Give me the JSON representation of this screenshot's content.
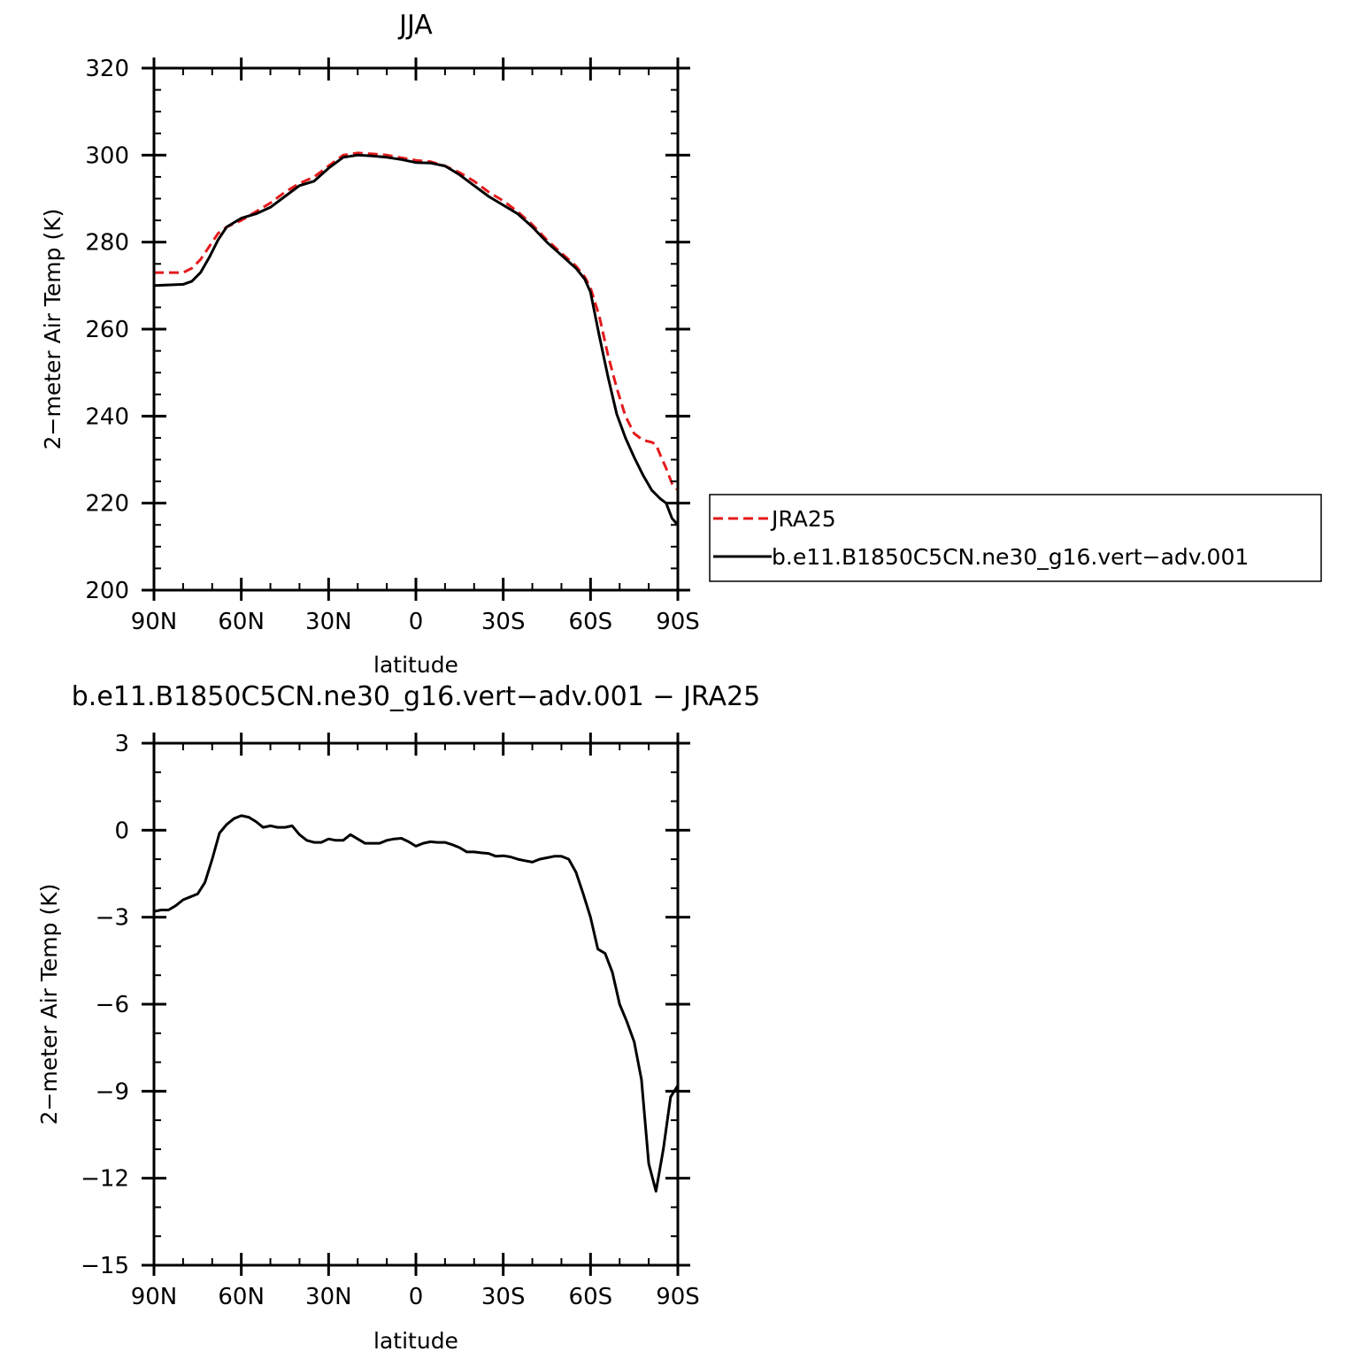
{
  "charts": [
    {
      "title": "JJA",
      "xlabel": "latitude",
      "ylabel": "2−meter Air Temp (K)",
      "xticks": [
        {
          "x": -90,
          "label": "90N"
        },
        {
          "x": -60,
          "label": "60N"
        },
        {
          "x": -30,
          "label": "30N"
        },
        {
          "x": 0,
          "label": "0"
        },
        {
          "x": 30,
          "label": "30S"
        },
        {
          "x": 60,
          "label": "60S"
        },
        {
          "x": 90,
          "label": "90S"
        }
      ],
      "yticks": [
        {
          "y": 200,
          "label": "200"
        },
        {
          "y": 220,
          "label": "220"
        },
        {
          "y": 240,
          "label": "240"
        },
        {
          "y": 260,
          "label": "260"
        },
        {
          "y": 280,
          "label": "280"
        },
        {
          "y": 300,
          "label": "300"
        },
        {
          "y": 320,
          "label": "320"
        }
      ],
      "legend": [
        {
          "label": "JRA25"
        },
        {
          "label": "b.e11.B1850C5CN.ne30_g16.vert−adv.001"
        }
      ]
    },
    {
      "title": "b.e11.B1850C5CN.ne30_g16.vert−adv.001  −  JRA25",
      "xlabel": "latitude",
      "ylabel": "2−meter Air Temp (K)",
      "xticks": [
        {
          "x": -90,
          "label": "90N"
        },
        {
          "x": -60,
          "label": "60N"
        },
        {
          "x": -30,
          "label": "30N"
        },
        {
          "x": 0,
          "label": "0"
        },
        {
          "x": 30,
          "label": "30S"
        },
        {
          "x": 60,
          "label": "60S"
        },
        {
          "x": 90,
          "label": "90S"
        }
      ],
      "yticks": [
        {
          "y": -15,
          "label": "−15"
        },
        {
          "y": -12,
          "label": "−12"
        },
        {
          "y": -9,
          "label": "−9"
        },
        {
          "y": -6,
          "label": "−6"
        },
        {
          "y": -3,
          "label": "−3"
        },
        {
          "y": 0,
          "label": "0"
        },
        {
          "y": 3,
          "label": "3"
        }
      ]
    }
  ],
  "chart_data": [
    {
      "type": "line",
      "title": "JJA",
      "xlabel": "latitude",
      "ylabel": "2−meter Air Temp (K)",
      "xlim": [
        -90,
        90
      ],
      "ylim": [
        200,
        320
      ],
      "x_note_direction": "latitude from 90N (left) to 90S (right); south positive",
      "grid": false,
      "legend_position": "right",
      "series": [
        {
          "name": "JRA25",
          "color": "#e41a1c",
          "dash": "dashed",
          "x": [
            -90,
            -80,
            -77,
            -74,
            -71,
            -68,
            -65,
            -60,
            -55,
            -50,
            -45,
            -40,
            -35,
            -30,
            -25,
            -20,
            -15,
            -10,
            -5,
            0,
            5,
            10,
            15,
            20,
            25,
            30,
            35,
            40,
            45,
            50,
            55,
            58,
            60,
            63,
            66,
            69,
            72,
            75,
            78,
            81,
            82.5,
            84,
            86,
            88,
            90
          ],
          "y": [
            273,
            273,
            274,
            276,
            279,
            282,
            283.5,
            285,
            287,
            289,
            291.5,
            293.5,
            295,
            297.5,
            300,
            300.5,
            300.3,
            300,
            299.4,
            298.8,
            298.5,
            297.5,
            296,
            294,
            291.5,
            289.5,
            287,
            284,
            280.5,
            277.5,
            274.5,
            272,
            269.5,
            263,
            254,
            246.5,
            240,
            236,
            234.5,
            234,
            233.5,
            231,
            228,
            224.5,
            223
          ]
        },
        {
          "name": "b.e11.B1850C5CN.ne30_g16.vert−adv.001",
          "color": "#000000",
          "dash": "solid",
          "x": [
            -90,
            -80,
            -77,
            -74,
            -71,
            -68,
            -65,
            -60,
            -55,
            -50,
            -45,
            -40,
            -35,
            -30,
            -25,
            -20,
            -15,
            -10,
            -5,
            0,
            5,
            10,
            15,
            20,
            25,
            30,
            35,
            40,
            45,
            50,
            55,
            58,
            60,
            63,
            66,
            69,
            72,
            75,
            78,
            81,
            82.5,
            84,
            86,
            88,
            90
          ],
          "y": [
            270,
            270.3,
            271,
            273,
            276.5,
            280.5,
            283.5,
            285.5,
            286.5,
            288,
            290.5,
            293,
            294,
            297,
            299.5,
            300,
            299.8,
            299.5,
            299,
            298.3,
            298.2,
            297.5,
            295.5,
            293,
            290.5,
            288.5,
            286.5,
            283.5,
            280,
            277,
            274,
            271.5,
            268.5,
            258.5,
            249,
            240.5,
            235,
            230.5,
            226.5,
            223,
            222,
            221,
            220,
            216.5,
            215
          ]
        }
      ]
    },
    {
      "type": "line",
      "title": "b.e11.B1850C5CN.ne30_g16.vert−adv.001  −  JRA25",
      "xlabel": "latitude",
      "ylabel": "2−meter Air Temp (K)",
      "xlim": [
        -90,
        90
      ],
      "ylim": [
        -15,
        3
      ],
      "grid": false,
      "series": [
        {
          "color": "#000000",
          "dash": "solid",
          "x": [
            -90,
            -87.5,
            -85,
            -82.5,
            -80,
            -77.5,
            -75,
            -72.5,
            -70,
            -67.5,
            -65,
            -62.5,
            -60,
            -57.5,
            -55,
            -52.5,
            -50,
            -47.5,
            -45,
            -42.5,
            -40,
            -37.5,
            -35,
            -32.5,
            -30,
            -27.5,
            -25,
            -22.5,
            -20,
            -17.5,
            -15,
            -12.5,
            -10,
            -7.5,
            -5,
            -2.5,
            0,
            2.5,
            5,
            7.5,
            10,
            12.5,
            15,
            17.5,
            20,
            22.5,
            25,
            27.5,
            30,
            32.5,
            35,
            37.5,
            40,
            42.5,
            45,
            47.5,
            50,
            52.5,
            55,
            57.5,
            60,
            62.5,
            65,
            67.5,
            70,
            72.5,
            75,
            77.5,
            80,
            82.5,
            85,
            87.5,
            90
          ],
          "y": [
            -2.8,
            -2.75,
            -2.75,
            -2.6,
            -2.4,
            -2.3,
            -2.2,
            -1.8,
            -1.0,
            -0.1,
            0.2,
            0.4,
            0.5,
            0.45,
            0.3,
            0.1,
            0.15,
            0.1,
            0.1,
            0.15,
            -0.15,
            -0.35,
            -0.42,
            -0.42,
            -0.3,
            -0.35,
            -0.35,
            -0.15,
            -0.3,
            -0.45,
            -0.45,
            -0.45,
            -0.35,
            -0.3,
            -0.28,
            -0.4,
            -0.55,
            -0.45,
            -0.4,
            -0.42,
            -0.42,
            -0.5,
            -0.6,
            -0.75,
            -0.75,
            -0.78,
            -0.8,
            -0.9,
            -0.88,
            -0.92,
            -1.0,
            -1.05,
            -1.1,
            -1.0,
            -0.95,
            -0.9,
            -0.9,
            -1.0,
            -1.45,
            -2.2,
            -3.0,
            -4.1,
            -4.25,
            -4.9,
            -6.0,
            -6.6,
            -7.3,
            -8.6,
            -11.5,
            -12.45,
            -11.0,
            -9.2,
            -8.8
          ]
        }
      ]
    }
  ]
}
